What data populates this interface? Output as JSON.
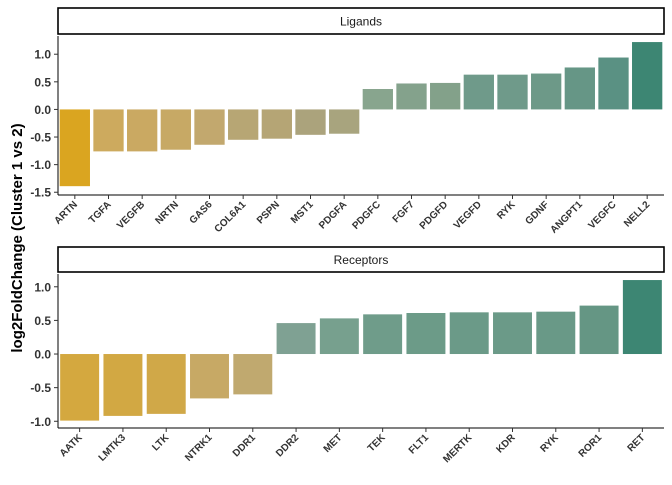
{
  "ylabel": "log2FoldChange (Cluster 1 vs 2)",
  "chart_data": [
    {
      "type": "bar",
      "title": "Ligands",
      "ylabel": "log2FoldChange (Cluster 1 vs 2)",
      "ylim": [
        -1.55,
        1.33
      ],
      "yticks": [
        -1.5,
        -1.0,
        -0.5,
        0.0,
        0.5,
        1.0
      ],
      "ytick_labels": [
        "-1.5",
        "-1.0",
        "-0.5",
        "0.0",
        "0.5",
        "1.0"
      ],
      "categories": [
        "ARTN",
        "TGFA",
        "VEGFB",
        "NRTN",
        "GAS6",
        "COL6A1",
        "PSPN",
        "MST1",
        "PDGFA",
        "PDGFC",
        "FGF7",
        "PDGFD",
        "VEGFD",
        "RYK",
        "GDNF",
        "ANGPT1",
        "VEGFC",
        "NELL2"
      ],
      "values": [
        -1.39,
        -0.76,
        -0.76,
        -0.73,
        -0.64,
        -0.55,
        -0.53,
        -0.46,
        -0.44,
        0.37,
        0.47,
        0.48,
        0.63,
        0.63,
        0.65,
        0.76,
        0.94,
        1.22
      ],
      "colors": [
        "#DAA520",
        "#CDAA5E",
        "#CAA962",
        "#C7A965",
        "#C2A86E",
        "#B7A674",
        "#B5A575",
        "#ABA37C",
        "#A8A47E",
        "#88A58E",
        "#84A28C",
        "#83A18A",
        "#6F9A8A",
        "#6F9A8A",
        "#6D9988",
        "#669686",
        "#5A9183",
        "#3D8673"
      ],
      "grid": false,
      "legend": "none"
    },
    {
      "type": "bar",
      "title": "Receptors",
      "ylabel": "log2FoldChange (Cluster 1 vs 2)",
      "ylim": [
        -1.1,
        1.19
      ],
      "yticks": [
        -1.0,
        -0.5,
        0.0,
        0.5,
        1.0
      ],
      "ytick_labels": [
        "-1.0",
        "-0.5",
        "0.0",
        "0.5",
        "1.0"
      ],
      "categories": [
        "AATK",
        "LMTK3",
        "LTK",
        "NTRK1",
        "DDR1",
        "DDR2",
        "MET",
        "TEK",
        "FLT1",
        "MERTK",
        "KDR",
        "RYK",
        "ROR1",
        "RET"
      ],
      "values": [
        -0.99,
        -0.92,
        -0.89,
        -0.66,
        -0.6,
        0.46,
        0.53,
        0.59,
        0.61,
        0.62,
        0.62,
        0.63,
        0.72,
        1.1
      ],
      "colors": [
        "#D4A83F",
        "#D2A843",
        "#D0A848",
        "#C7A965",
        "#C0A96F",
        "#7FA193",
        "#77A08E",
        "#6F9C8A",
        "#6C9B88",
        "#6B9A88",
        "#6B9A88",
        "#699987",
        "#659684",
        "#3D8673"
      ],
      "grid": false,
      "legend": "none"
    }
  ]
}
